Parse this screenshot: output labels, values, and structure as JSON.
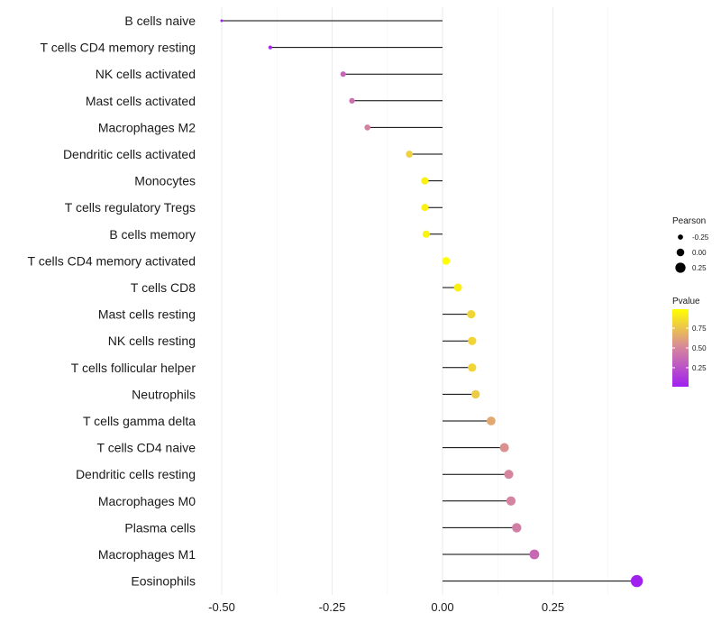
{
  "chart_data": {
    "type": "lollipop",
    "title": "",
    "xlabel": "",
    "ylabel": "",
    "xlim": [
      -0.55,
      0.45
    ],
    "xticks": [
      -0.5,
      -0.25,
      0.0,
      0.25
    ],
    "xtick_labels": [
      "-0.50",
      "-0.25",
      "0.00",
      "0.25"
    ],
    "grid": true,
    "legend_position": "right",
    "categories": [
      "B cells naive",
      "T cells CD4 memory resting",
      "NK cells activated",
      "Mast cells activated",
      "Macrophages M2",
      "Dendritic cells activated",
      "Monocytes",
      "T cells regulatory  Tregs",
      "B cells memory",
      "T cells CD4 memory activated",
      "T cells CD8",
      "Mast cells resting",
      "NK cells resting",
      "T cells follicular helper",
      "Neutrophils",
      "T cells gamma delta",
      "T cells CD4 naive",
      "Dendritic cells resting",
      "Macrophages M0",
      "Plasma cells",
      "Macrophages M1",
      "Eosinophils"
    ],
    "pearson": [
      -0.5,
      -0.39,
      -0.225,
      -0.205,
      -0.17,
      -0.075,
      -0.04,
      -0.04,
      -0.037,
      0.008,
      0.035,
      0.065,
      0.067,
      0.067,
      0.075,
      0.11,
      0.14,
      0.15,
      0.155,
      0.168,
      0.208,
      0.44
    ],
    "pvalue": [
      0.01,
      0.05,
      0.35,
      0.4,
      0.48,
      0.8,
      0.93,
      0.93,
      0.94,
      0.99,
      0.93,
      0.82,
      0.82,
      0.82,
      0.78,
      0.64,
      0.55,
      0.5,
      0.49,
      0.46,
      0.36,
      0.01
    ],
    "legend": {
      "size_title": "Pearson",
      "size_labels": [
        "-0.25",
        "0.00",
        "0.25"
      ],
      "size_values": [
        -0.25,
        0.0,
        0.25
      ],
      "color_title": "Pvalue",
      "color_labels": [
        "0.75",
        "0.50",
        "0.25"
      ],
      "color_values": [
        0.75,
        0.5,
        0.25
      ],
      "color_range": [
        0.01,
        0.99
      ]
    },
    "colors": {
      "low": "#a020f0",
      "mid": "#d6859e",
      "high": "#ffff00",
      "stem": "#000000",
      "grid": "#ebebeb"
    }
  }
}
